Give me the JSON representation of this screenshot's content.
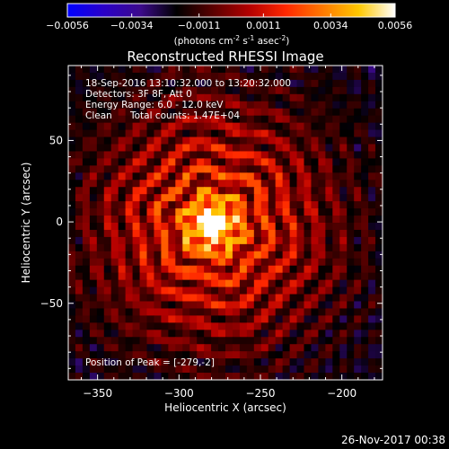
{
  "chart_data": {
    "type": "heatmap",
    "title": "Reconstructed RHESSI Image",
    "xlabel": "Heliocentric X (arcsec)",
    "ylabel": "Heliocentric Y (arcsec)",
    "xlim": [
      -368,
      -175
    ],
    "ylim": [
      -97,
      96
    ],
    "x_ticks": [
      -350,
      -300,
      -250,
      -200
    ],
    "y_ticks": [
      -50,
      0,
      50
    ],
    "colorbar": {
      "vmin": -0.0056,
      "vmax": 0.0056,
      "ticks": [
        "-0.0056",
        "-0.0034",
        "-0.0011",
        "0.0011",
        "0.0034",
        "0.0056"
      ],
      "unit_prefix": "(photons cm",
      "unit_sup1": "-2",
      "unit_mid1": " s",
      "unit_sup2": "-1",
      "unit_mid2": " asec",
      "unit_sup3": "-2",
      "unit_suffix": ")",
      "stops": [
        "#0000ff",
        "#2a00c8",
        "#3c0a8c",
        "#000000",
        "#5a0000",
        "#b40000",
        "#ff2800",
        "#ff7800",
        "#ffc800",
        "#ffffff"
      ]
    },
    "annotations": {
      "time_range": "18-Sep-2016 13:10:32.000 to 13:20:32.000",
      "detectors": "Detectors: 3F 8F, Att 0",
      "energy_range": "Energy Range: 6.0 - 12.0 keV",
      "clean": "Clean",
      "total_counts": "Total counts: 1.47E+04",
      "peak": "Position of Peak = [-279,-2]"
    },
    "peak_position": [
      -279,
      -2
    ],
    "grid": false
  },
  "footer": {
    "timestamp": "26-Nov-2017 00:38"
  }
}
